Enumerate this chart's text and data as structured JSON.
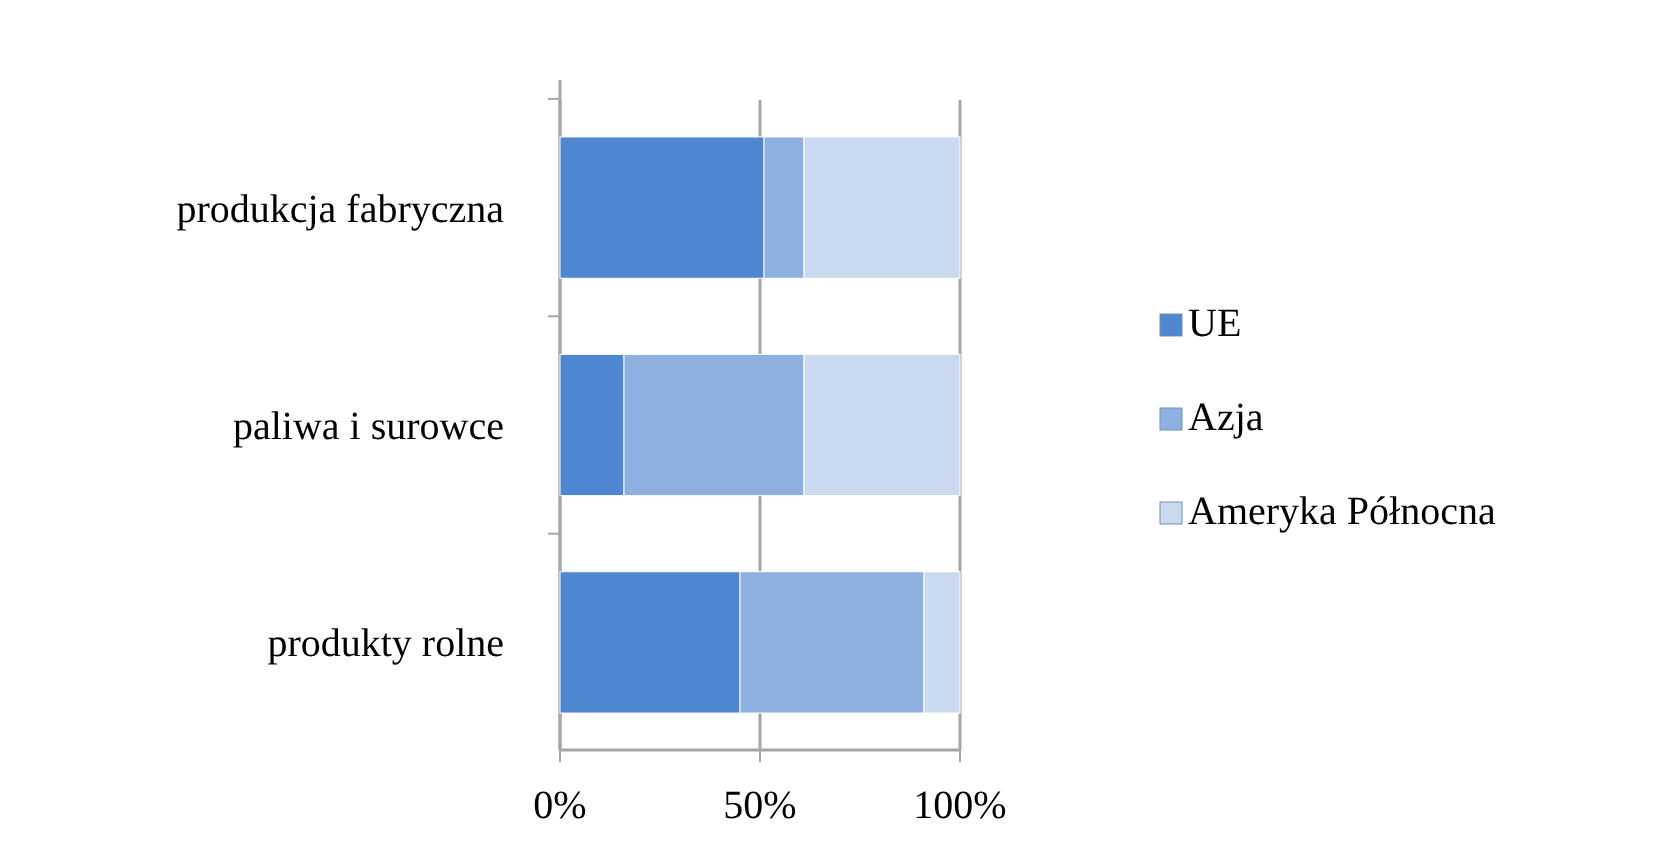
{
  "chart_data": {
    "type": "bar",
    "orientation": "horizontal",
    "stacked": true,
    "categories": [
      "produkcja fabryczna",
      "paliwa i surowce",
      "produkty rolne"
    ],
    "series": [
      {
        "name": "UE",
        "color": "#4f86d0",
        "values": [
          51,
          16,
          45
        ]
      },
      {
        "name": "Azja",
        "color": "#8db0e0",
        "values": [
          10,
          45,
          46
        ]
      },
      {
        "name": "Ameryka Północna",
        "color": "#c8d9f0",
        "values": [
          39,
          39,
          9
        ]
      }
    ],
    "xlim": [
      0,
      100
    ],
    "xticks": [
      {
        "value": 0,
        "label": "0%"
      },
      {
        "value": 50,
        "label": "50%"
      },
      {
        "value": 100,
        "label": "100%"
      }
    ],
    "grid": "x",
    "legend": "right"
  }
}
